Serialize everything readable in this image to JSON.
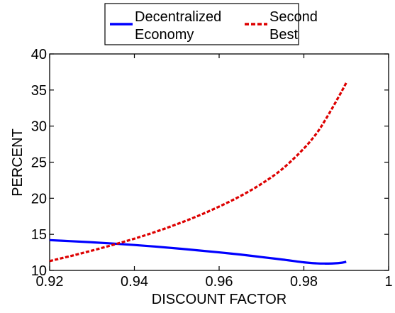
{
  "chart_data": {
    "type": "line",
    "title": "",
    "xlabel": "DISCOUNT FACTOR",
    "ylabel": "PERCENT",
    "xlim": [
      0.92,
      1.0
    ],
    "ylim": [
      10,
      40
    ],
    "xticks": [
      0.92,
      0.94,
      0.96,
      0.98,
      1.0
    ],
    "xtick_labels": [
      "0.92",
      "0.94",
      "0.96",
      "0.98",
      "1"
    ],
    "yticks": [
      10,
      15,
      20,
      25,
      30,
      35,
      40
    ],
    "ytick_labels": [
      "10",
      "15",
      "20",
      "25",
      "30",
      "35",
      "40"
    ],
    "grid": false,
    "legend_position": "top-outside",
    "series": [
      {
        "name": "Decentralized Economy",
        "color": "#0000ff",
        "line_style": "solid",
        "x": [
          0.92,
          0.925,
          0.93,
          0.935,
          0.94,
          0.945,
          0.95,
          0.955,
          0.96,
          0.965,
          0.97,
          0.975,
          0.98,
          0.983,
          0.985,
          0.987,
          0.989,
          0.99
        ],
        "y": [
          14.2,
          14.05,
          13.9,
          13.72,
          13.52,
          13.3,
          13.05,
          12.78,
          12.5,
          12.2,
          11.85,
          11.5,
          11.12,
          10.98,
          10.95,
          10.97,
          11.07,
          11.2
        ]
      },
      {
        "name": "Second Best",
        "color": "#dd0000",
        "line_style": "dashed",
        "x": [
          0.92,
          0.925,
          0.93,
          0.935,
          0.94,
          0.945,
          0.95,
          0.955,
          0.96,
          0.965,
          0.97,
          0.975,
          0.98,
          0.983,
          0.985,
          0.987,
          0.989,
          0.99
        ],
        "y": [
          11.3,
          12.0,
          12.75,
          13.55,
          14.4,
          15.35,
          16.4,
          17.55,
          18.85,
          20.3,
          22.0,
          24.1,
          26.9,
          29.0,
          30.8,
          32.8,
          34.9,
          36.0
        ]
      }
    ]
  }
}
